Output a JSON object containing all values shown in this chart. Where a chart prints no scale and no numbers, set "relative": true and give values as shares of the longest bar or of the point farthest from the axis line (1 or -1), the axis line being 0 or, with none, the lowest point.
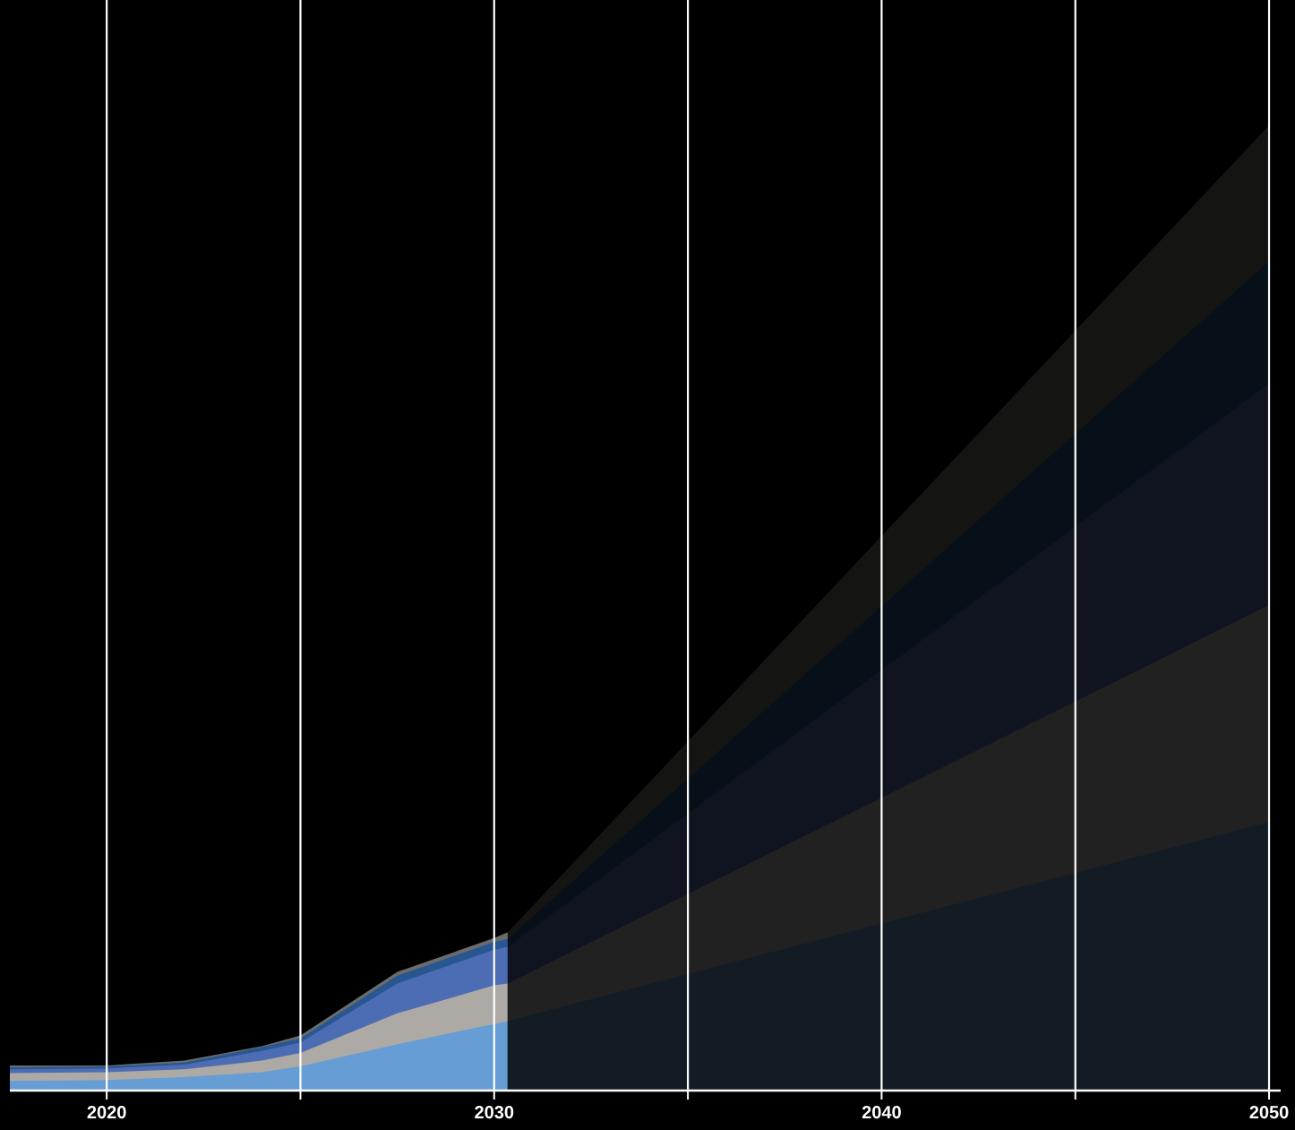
{
  "chart_data": {
    "type": "area",
    "relative": true,
    "grid": "x",
    "x": [
      2017.5,
      2020,
      2022,
      2024,
      2025,
      2027.5,
      2030,
      2030.35,
      2050
    ],
    "xlim": [
      2017.5,
      2050.3
    ],
    "xticks": [
      {
        "value": 2020,
        "label": "2020"
      },
      {
        "value": 2025,
        "label": null
      },
      {
        "value": 2030,
        "label": "2030"
      },
      {
        "value": 2035,
        "label": null
      },
      {
        "value": 2040,
        "label": "2040"
      },
      {
        "value": 2045,
        "label": null
      },
      {
        "value": 2050,
        "label": "2050"
      }
    ],
    "series": [
      {
        "color": "#6b6b6b",
        "values": [
          0.026,
          0.026,
          0.031,
          0.046,
          0.057,
          0.123,
          0.158,
          0.164,
          null
        ]
      },
      {
        "color": "#275690",
        "values": [
          0.024,
          0.025,
          0.029,
          0.045,
          0.054,
          0.119,
          0.154,
          0.157,
          null
        ]
      },
      {
        "color": "#4c6cb3",
        "values": [
          0.022,
          0.023,
          0.027,
          0.041,
          0.05,
          0.111,
          0.146,
          0.149,
          null
        ]
      },
      {
        "color": "#adaaa6",
        "values": [
          0.018,
          0.019,
          0.022,
          0.031,
          0.039,
          0.08,
          0.109,
          0.111,
          null
        ]
      },
      {
        "color": "#659dd4",
        "values": [
          0.01,
          0.011,
          0.014,
          0.019,
          0.025,
          0.048,
          0.069,
          0.072,
          null
        ]
      },
      {
        "color": "#141412",
        "values": [
          null,
          null,
          null,
          null,
          null,
          null,
          null,
          0.164,
          1.0
        ]
      },
      {
        "color": "#071018",
        "values": [
          null,
          null,
          null,
          null,
          null,
          null,
          null,
          0.157,
          0.859
        ]
      },
      {
        "color": "#0f1420",
        "values": [
          null,
          null,
          null,
          null,
          null,
          null,
          null,
          0.149,
          0.733
        ]
      },
      {
        "color": "#212121",
        "values": [
          null,
          null,
          null,
          null,
          null,
          null,
          null,
          0.111,
          0.503
        ]
      },
      {
        "color": "#131c24",
        "values": [
          null,
          null,
          null,
          null,
          null,
          null,
          null,
          0.072,
          0.278
        ]
      }
    ]
  }
}
